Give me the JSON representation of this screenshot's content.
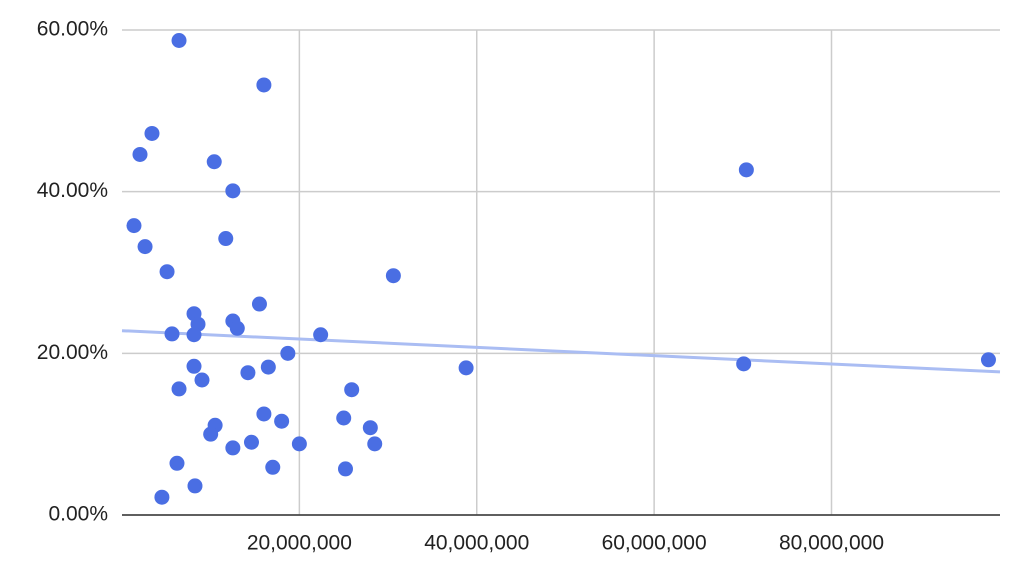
{
  "chart_data": {
    "type": "scatter",
    "x": [
      6430000,
      16000000,
      3380000,
      2030000,
      10400000,
      12500000,
      70400000,
      1350000,
      2600000,
      11700000,
      5080000,
      30600000,
      15500000,
      8120000,
      8570000,
      12500000,
      13000000,
      5640000,
      8120000,
      22400000,
      18700000,
      8120000,
      16500000,
      38800000,
      70100000,
      97700000,
      14200000,
      9020000,
      6430000,
      25900000,
      16000000,
      18000000,
      25000000,
      10500000,
      28000000,
      10000000,
      14600000,
      12500000,
      20000000,
      28500000,
      6200000,
      17000000,
      25200000,
      8230000,
      4500000
    ],
    "values": [
      58.7,
      53.2,
      47.2,
      44.6,
      43.7,
      40.1,
      42.7,
      35.8,
      33.2,
      34.2,
      30.1,
      29.6,
      26.1,
      24.9,
      23.6,
      24.0,
      23.1,
      22.4,
      22.3,
      22.3,
      20.0,
      18.4,
      18.3,
      18.2,
      18.7,
      19.2,
      17.6,
      16.7,
      15.6,
      15.5,
      12.5,
      11.6,
      12.0,
      11.1,
      10.8,
      10.0,
      9.0,
      8.3,
      8.8,
      8.8,
      6.4,
      5.9,
      5.7,
      3.6,
      2.2
    ],
    "color": "#4a6ee3",
    "trendline": {
      "x": [
        0,
        99000000
      ],
      "values": [
        22.8,
        17.7
      ],
      "color": "#aabdf3"
    },
    "xlim": [
      0,
      99000000
    ],
    "xticks": [
      {
        "value": 20000000,
        "label": "20,000,000"
      },
      {
        "value": 40000000,
        "label": "40,000,000"
      },
      {
        "value": 60000000,
        "label": "60,000,000"
      },
      {
        "value": 80000000,
        "label": "80,000,000"
      }
    ],
    "ylim": [
      0,
      60
    ],
    "yticks": [
      {
        "value": 0,
        "label": "0.00%"
      },
      {
        "value": 20,
        "label": "20.00%"
      },
      {
        "value": 40,
        "label": "40.00%"
      },
      {
        "value": 60,
        "label": "60.00%"
      }
    ],
    "grid": true
  }
}
